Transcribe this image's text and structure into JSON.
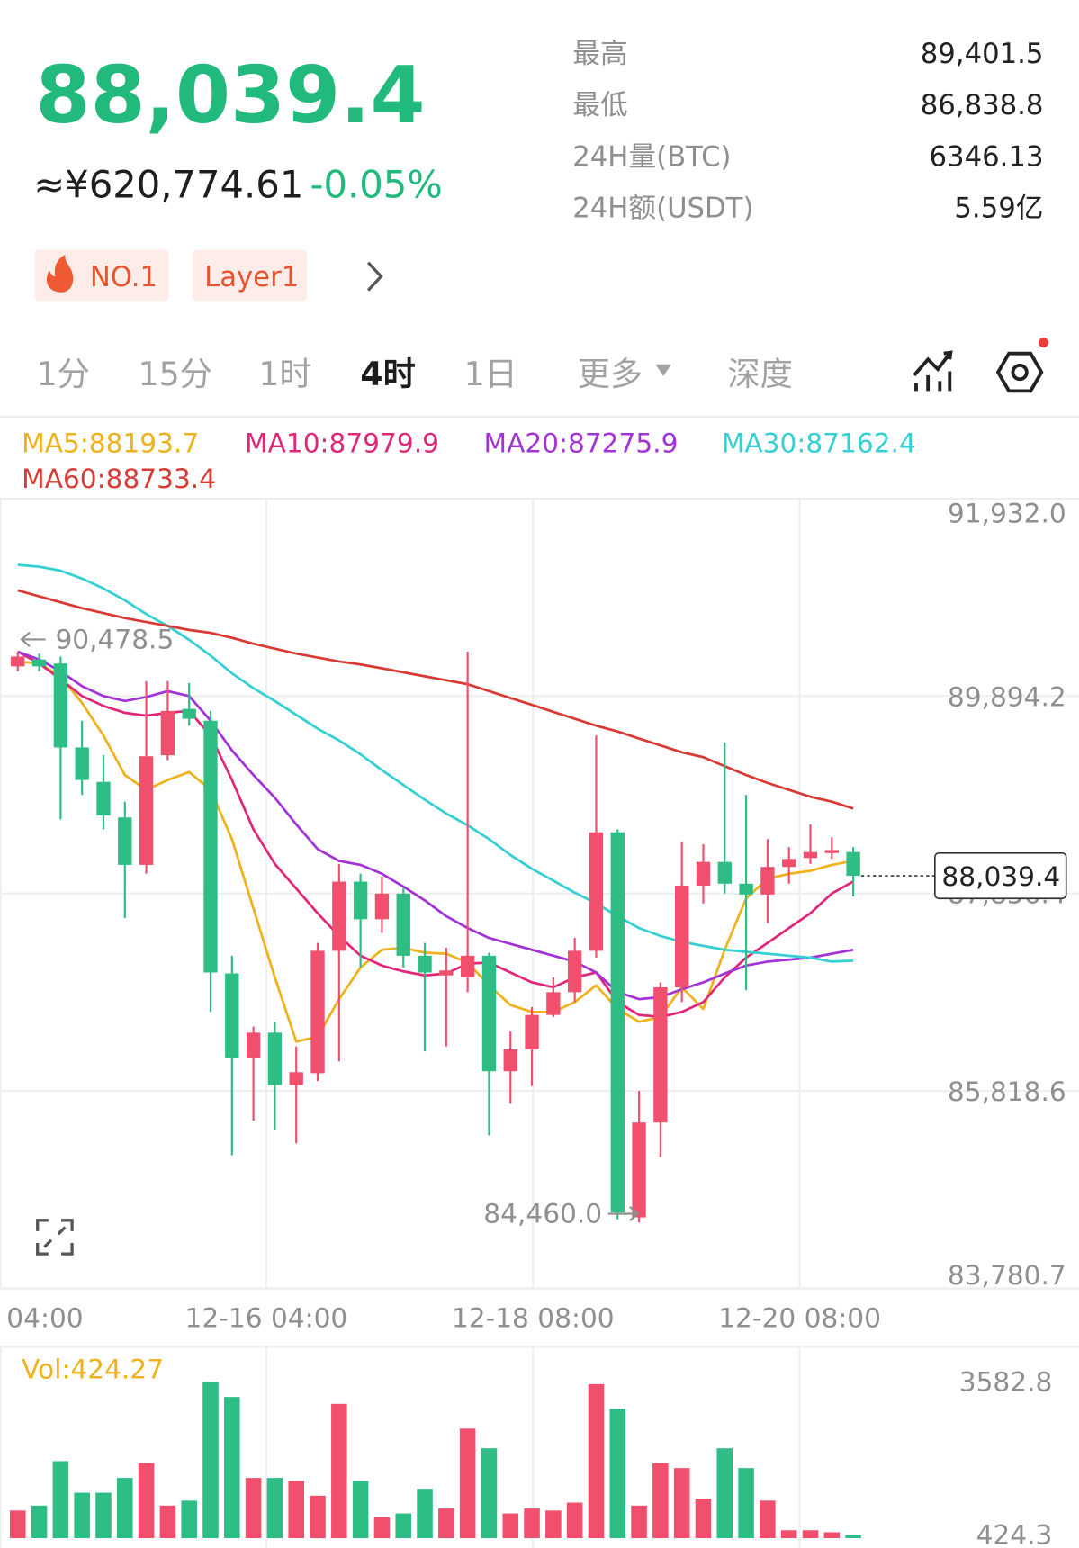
{
  "header": {
    "price": "88,039.4",
    "cny": "≈¥620,774.61",
    "change": "-0.05%",
    "stats": [
      {
        "label": "最高",
        "value": "89,401.5"
      },
      {
        "label": "最低",
        "value": "86,838.8"
      },
      {
        "label": "24H量(BTC)",
        "value": "6346.13"
      },
      {
        "label": "24H额(USDT)",
        "value": "5.59亿"
      }
    ],
    "tags": [
      "NO.1",
      "Layer1"
    ]
  },
  "tabs": [
    "1分",
    "15分",
    "1时",
    "4时",
    "1日",
    "更多",
    "深度"
  ],
  "chart_data": {
    "type": "candlestick",
    "categories": [
      null,
      null,
      null,
      null,
      null,
      null,
      null,
      null,
      null,
      null,
      null,
      null,
      null,
      null,
      null,
      null,
      null,
      null,
      null,
      null,
      null,
      null,
      null,
      null,
      null,
      null,
      null,
      null,
      null,
      null,
      null,
      null,
      null,
      null,
      null,
      null,
      null,
      null,
      null,
      null
    ],
    "open": [
      90200,
      90271,
      90230,
      89364,
      89008,
      88641,
      88152,
      89283,
      89762,
      89640,
      87031,
      86155,
      86420,
      85880,
      86002,
      87265,
      87979,
      87591,
      87856,
      87214,
      87011,
      86990,
      87214,
      86022,
      86247,
      86603,
      86838,
      87265,
      88488,
      84514,
      85493,
      86888,
      87938,
      88182,
      87958,
      87846,
      88131,
      88223,
      88274,
      88284
    ],
    "high": [
      90353,
      90332,
      90302,
      89640,
      89283,
      88804,
      90047,
      90047,
      90027,
      89741,
      87214,
      86481,
      86532,
      86277,
      87347,
      88162,
      88060,
      88030,
      87907,
      87347,
      87296,
      90353,
      87245,
      86430,
      86685,
      86990,
      87398,
      89487,
      88519,
      85819,
      86939,
      88386,
      88366,
      89415,
      88875,
      88417,
      88335,
      88570,
      88437,
      88335
    ],
    "low": [
      90149,
      90149,
      88621,
      88875,
      88519,
      87602,
      88060,
      89232,
      89589,
      86634,
      85156,
      85513,
      85411,
      85279,
      85921,
      86124,
      87092,
      87449,
      87092,
      86226,
      86277,
      86838,
      85360,
      85686,
      85870,
      86583,
      86736,
      87194,
      84494,
      84460.0,
      85136,
      86736,
      87754,
      87856,
      86858,
      87551,
      87958,
      88162,
      88213,
      87826
    ],
    "close": [
      90302,
      90200,
      89364,
      89028,
      88661,
      88152,
      89273,
      89741,
      89660,
      87041,
      86155,
      86420,
      85880,
      86012,
      87265,
      87979,
      87591,
      87856,
      87214,
      87041,
      87062,
      87214,
      86022,
      86247,
      86603,
      86838,
      87265,
      88488,
      84565,
      85493,
      86888,
      87938,
      88182,
      87958,
      87846,
      88131,
      88213,
      88284,
      88305,
      88039.4
    ],
    "up_color": "#f0506e",
    "down_color": "#2ebd85",
    "series": [
      {
        "name": "MA5:88193.7",
        "color": "#f0b21c",
        "values": [
          90251,
          90230,
          90098,
          89823,
          89487,
          89079,
          88926,
          89028,
          89110,
          88926,
          88417,
          87703,
          86990,
          86328,
          86379,
          86766,
          87092,
          87276,
          87296,
          87245,
          87235,
          87143,
          86909,
          86705,
          86634,
          86634,
          86736,
          86909,
          86664,
          86532,
          86583,
          86888,
          86664,
          87276,
          87805,
          88009,
          88060,
          88091,
          88152,
          88193.7
        ]
      },
      {
        "name": "MA10:87979.9",
        "color": "#e0287b",
        "values": [
          90353,
          90230,
          90067,
          89894,
          89792,
          89721,
          89691,
          89721,
          89741,
          89487,
          89028,
          88519,
          88162,
          87907,
          87653,
          87418,
          87214,
          87113,
          87052,
          87011,
          87031,
          87133,
          87143,
          87041,
          86939,
          86888,
          86990,
          87041,
          86736,
          86603,
          86583,
          86634,
          86736,
          86990,
          87194,
          87347,
          87500,
          87653,
          87856,
          87979.9
        ]
      },
      {
        "name": "MA20:87275.9",
        "color": "#a234d6",
        "values": [
          90353,
          90271,
          90149,
          89996,
          89894,
          89843,
          89884,
          89945,
          89894,
          89640,
          89334,
          89079,
          88845,
          88570,
          88315,
          88193,
          88152,
          88060,
          87928,
          87785,
          87622,
          87500,
          87398,
          87337,
          87276,
          87214,
          87153,
          87041,
          86838,
          86766,
          86786,
          86868,
          86939,
          87031,
          87113,
          87153,
          87174,
          87194,
          87235,
          87275.9
        ]
      },
      {
        "name": "MA30:87162.4",
        "color": "#35cfd4",
        "values": [
          91249,
          91229,
          91188,
          91107,
          91005,
          90883,
          90740,
          90618,
          90475,
          90312,
          90129,
          89976,
          89843,
          89701,
          89558,
          89436,
          89293,
          89130,
          88977,
          88824,
          88682,
          88560,
          88417,
          88254,
          88111,
          87989,
          87866,
          87754,
          87622,
          87500,
          87418,
          87357,
          87316,
          87276,
          87255,
          87235,
          87214,
          87194,
          87153,
          87162.4
        ]
      },
      {
        "name": "MA60:88733.4",
        "color": "#d83a35",
        "values": [
          90984,
          90923,
          90862,
          90801,
          90750,
          90699,
          90658,
          90618,
          90577,
          90546,
          90495,
          90434,
          90383,
          90332,
          90292,
          90251,
          90220,
          90180,
          90139,
          90098,
          90057,
          90016,
          89945,
          89874,
          89803,
          89731,
          89660,
          89589,
          89528,
          89456,
          89385,
          89313,
          89263,
          89171,
          89079,
          88998,
          88926,
          88855,
          88804,
          88733.4
        ]
      }
    ],
    "ylim": [
      83780.7,
      91932.0
    ],
    "yticks": [
      {
        "value": 91932.0,
        "label": "91,932.0"
      },
      {
        "value": 89894.2,
        "label": "89,894.2"
      },
      {
        "value": 87856.4,
        "label": "87,856.4"
      },
      {
        "value": 85818.6,
        "label": "85,818.6"
      },
      {
        "value": 83780.7,
        "label": "83,780.7"
      }
    ],
    "xticks": [
      {
        "value": -0.8,
        "label": "04:00"
      },
      {
        "value": 11.6,
        "label": "12-16 04:00"
      },
      {
        "value": 24.05,
        "label": "12-18 08:00"
      },
      {
        "value": 36.5,
        "label": "12-20 08:00"
      }
    ],
    "grid": true,
    "annotations": [
      {
        "label": "90,478.5",
        "value": 90478.5
      },
      {
        "label": "84,460.0",
        "value": 84460.0
      }
    ],
    "volume": {
      "name": "Vol:424.27",
      "color": "#f0b21c",
      "values": [
        934,
        1036,
        1953,
        1301,
        1301,
        1606,
        1912,
        1036,
        1138,
        3582.8,
        3277,
        1606,
        1606,
        1545,
        1240,
        3135,
        1545,
        791,
        873,
        1382,
        975,
        2625,
        2218,
        873,
        975,
        934,
        1097,
        3543,
        3033,
        1036,
        1912,
        1810,
        1178,
        2218,
        1810,
        1138,
        526,
        526,
        485,
        424.27
      ],
      "ylim": [
        424.3,
        3582.8
      ],
      "yticks": [
        3582.8,
        424.3
      ]
    }
  }
}
